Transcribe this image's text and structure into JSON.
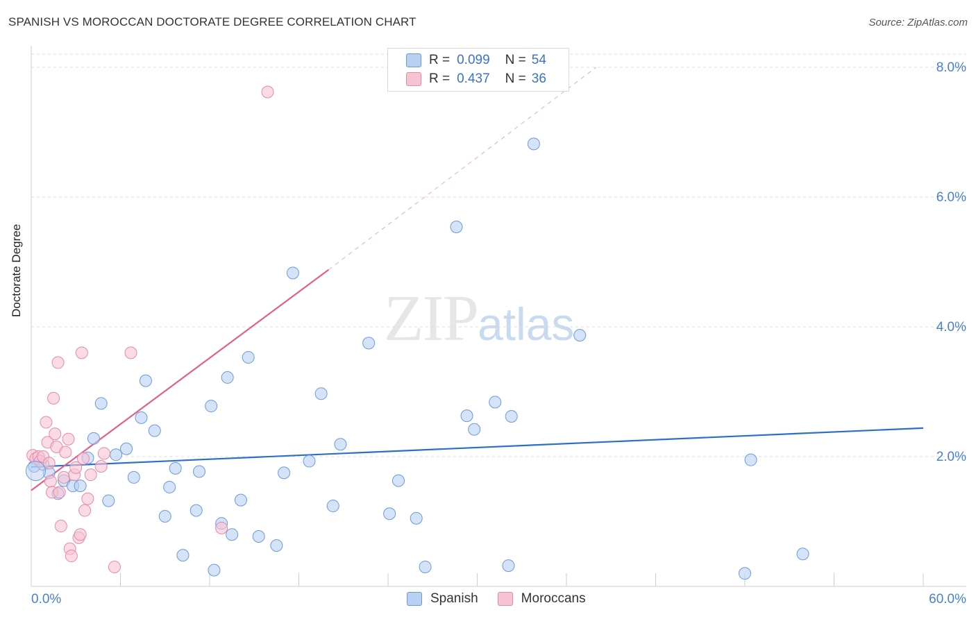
{
  "title": "SPANISH VS MOROCCAN DOCTORATE DEGREE CORRELATION CHART",
  "source": "Source: ZipAtlas.com",
  "watermark": {
    "zip": "ZIP",
    "atlas": "atlas"
  },
  "colors": {
    "spanish_fill": "#b8d0f2",
    "spanish_stroke": "#6a9ad8",
    "spanish_line": "#2c6fc7",
    "moroccan_fill": "#f7c3d3",
    "moroccan_stroke": "#e58aa6",
    "moroccan_line": "#e06088",
    "tick_label": "#4a7fcf",
    "grid": "#dddddd"
  },
  "legend_top": [
    {
      "r_key": "R =",
      "r_val": "0.099",
      "n_key": "N =",
      "n_val": "54",
      "color": "spanish"
    },
    {
      "r_key": "R =",
      "r_val": "0.437",
      "n_key": "N =",
      "n_val": "36",
      "color": "moroccan"
    }
  ],
  "legend_bottom": [
    "Spanish",
    "Moroccans"
  ],
  "chart_data": {
    "type": "scatter",
    "title": "SPANISH VS MOROCCAN DOCTORATE DEGREE CORRELATION CHART",
    "xlabel": "",
    "ylabel": "Doctorate Degree",
    "xlim": [
      0,
      60
    ],
    "ylim": [
      0,
      8
    ],
    "x_tick_labels": [
      "0.0%",
      "60.0%"
    ],
    "y_ticks": [
      2,
      4,
      6,
      8
    ],
    "y_tick_labels": [
      "2.0%",
      "4.0%",
      "6.0%",
      "8.0%"
    ],
    "grid": true,
    "legend": "top-center",
    "series": [
      {
        "name": "Spanish",
        "r": 0.099,
        "n": 54,
        "trend": {
          "x": [
            0,
            60
          ],
          "y": [
            1.84,
            2.44
          ]
        },
        "points": [
          [
            0.2,
            1.85
          ],
          [
            0.8,
            1.88
          ],
          [
            1.2,
            1.75
          ],
          [
            1.8,
            1.43
          ],
          [
            2.2,
            1.63
          ],
          [
            2.8,
            1.55
          ],
          [
            3.3,
            1.55
          ],
          [
            3.8,
            1.98
          ],
          [
            4.2,
            2.28
          ],
          [
            4.7,
            2.82
          ],
          [
            5.2,
            1.32
          ],
          [
            5.7,
            2.03
          ],
          [
            6.4,
            2.12
          ],
          [
            6.9,
            1.68
          ],
          [
            7.4,
            2.6
          ],
          [
            7.7,
            3.17
          ],
          [
            8.3,
            2.4
          ],
          [
            9.0,
            1.08
          ],
          [
            9.3,
            1.53
          ],
          [
            9.7,
            1.82
          ],
          [
            10.2,
            0.48
          ],
          [
            11.1,
            1.17
          ],
          [
            11.3,
            1.77
          ],
          [
            12.1,
            2.78
          ],
          [
            12.3,
            0.25
          ],
          [
            12.8,
            0.97
          ],
          [
            13.2,
            3.22
          ],
          [
            13.5,
            0.8
          ],
          [
            14.1,
            1.33
          ],
          [
            14.6,
            3.53
          ],
          [
            15.3,
            0.77
          ],
          [
            16.5,
            0.63
          ],
          [
            17.0,
            1.75
          ],
          [
            17.6,
            4.83
          ],
          [
            18.7,
            1.93
          ],
          [
            19.5,
            2.97
          ],
          [
            20.3,
            1.24
          ],
          [
            20.8,
            2.19
          ],
          [
            22.7,
            3.75
          ],
          [
            24.1,
            1.12
          ],
          [
            24.7,
            1.63
          ],
          [
            25.9,
            1.05
          ],
          [
            26.5,
            0.3
          ],
          [
            28.6,
            5.54
          ],
          [
            29.3,
            2.63
          ],
          [
            29.8,
            2.42
          ],
          [
            31.2,
            2.84
          ],
          [
            32.1,
            0.32
          ],
          [
            32.3,
            2.62
          ],
          [
            33.8,
            6.82
          ],
          [
            36.9,
            3.87
          ],
          [
            48.0,
            0.2
          ],
          [
            48.4,
            1.95
          ],
          [
            51.9,
            0.5
          ]
        ]
      },
      {
        "name": "Moroccans",
        "r": 0.437,
        "n": 36,
        "trend": {
          "x": [
            0,
            20
          ],
          "y": [
            1.48,
            4.88
          ]
        },
        "trend_extension": {
          "x": [
            20,
            38
          ],
          "y": [
            4.88,
            8.0
          ]
        },
        "points": [
          [
            0.1,
            2.02
          ],
          [
            0.3,
            1.97
          ],
          [
            0.5,
            2.0
          ],
          [
            0.6,
            1.93
          ],
          [
            0.8,
            2.0
          ],
          [
            1.0,
            2.53
          ],
          [
            1.1,
            2.22
          ],
          [
            1.2,
            1.9
          ],
          [
            1.3,
            1.62
          ],
          [
            1.4,
            1.45
          ],
          [
            1.5,
            2.9
          ],
          [
            1.6,
            2.35
          ],
          [
            1.7,
            2.15
          ],
          [
            1.8,
            3.45
          ],
          [
            1.9,
            1.45
          ],
          [
            2.0,
            0.93
          ],
          [
            2.2,
            1.68
          ],
          [
            2.3,
            2.07
          ],
          [
            2.5,
            2.27
          ],
          [
            2.6,
            0.58
          ],
          [
            2.7,
            0.47
          ],
          [
            2.9,
            1.72
          ],
          [
            3.0,
            1.83
          ],
          [
            3.2,
            0.75
          ],
          [
            3.3,
            0.8
          ],
          [
            3.4,
            3.6
          ],
          [
            3.5,
            1.97
          ],
          [
            3.6,
            1.17
          ],
          [
            3.8,
            1.35
          ],
          [
            4.0,
            1.72
          ],
          [
            4.7,
            1.85
          ],
          [
            4.9,
            2.05
          ],
          [
            5.6,
            0.3
          ],
          [
            6.7,
            3.6
          ],
          [
            12.8,
            0.9
          ],
          [
            15.9,
            7.62
          ]
        ]
      }
    ]
  }
}
